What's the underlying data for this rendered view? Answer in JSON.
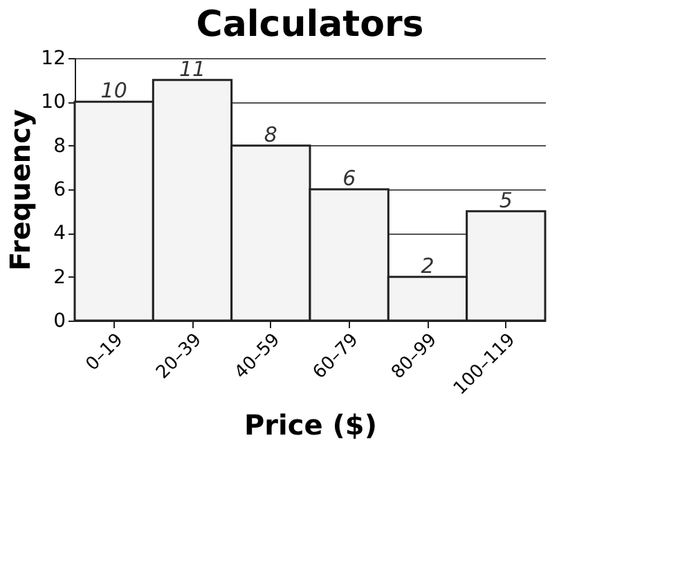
{
  "chart_data": {
    "type": "bar",
    "title": "Calculators",
    "xlabel": "Price ($)",
    "ylabel": "Frequency",
    "categories": [
      "0–19",
      "20–39",
      "40–59",
      "60–79",
      "80–99",
      "100–119"
    ],
    "values": [
      10,
      11,
      8,
      6,
      2,
      5
    ],
    "color": "#f4f4f4",
    "ylim": [
      0,
      12
    ],
    "yticks": [
      0,
      2,
      4,
      6,
      8,
      10,
      12
    ],
    "grid": "y",
    "data_labels": true
  }
}
